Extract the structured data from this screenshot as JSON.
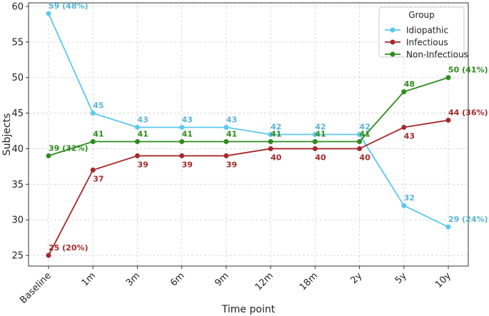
{
  "chart_data": {
    "type": "line",
    "title": "",
    "xlabel": "Time point",
    "ylabel": "Subjects",
    "categories": [
      "Baseline",
      "1m",
      "3m",
      "6m",
      "9m",
      "12m",
      "18m",
      "2y",
      "5y",
      "10y"
    ],
    "ylim": [
      23.5,
      60.5
    ],
    "yticks": [
      25,
      30,
      35,
      40,
      45,
      50,
      55,
      60
    ],
    "grid": true,
    "legend": {
      "title": "Group",
      "placement": "top-right"
    },
    "series": [
      {
        "name": "Idiopathic",
        "color": "#5bc8ef",
        "label_color": "#5ab4d6",
        "values": [
          59,
          45,
          43,
          43,
          43,
          42,
          42,
          42,
          32,
          29
        ],
        "labels": [
          "59 (48%)",
          "45",
          "43",
          "43",
          "43",
          "42",
          "42",
          "42",
          "32",
          "29 (24%)"
        ],
        "label_pos": [
          "above",
          "above",
          "above",
          "above",
          "above",
          "above",
          "above",
          "above",
          "above",
          "above"
        ]
      },
      {
        "name": "Infectious",
        "color": "#a52a2a",
        "label_color": "#a52a2a",
        "values": [
          25,
          37,
          39,
          39,
          39,
          40,
          40,
          40,
          43,
          44
        ],
        "labels": [
          "25 (20%)",
          "37",
          "39",
          "39",
          "39",
          "40",
          "40",
          "40",
          "43",
          "44 (36%)"
        ],
        "label_pos": [
          "above",
          "below",
          "below",
          "below",
          "below",
          "below",
          "below",
          "below",
          "below",
          "above"
        ]
      },
      {
        "name": "Non-Infectious",
        "color": "#2e8b1e",
        "label_color": "#2e8b1e",
        "values": [
          39,
          41,
          41,
          41,
          41,
          41,
          41,
          41,
          48,
          50
        ],
        "labels": [
          "39 (32%)",
          "41",
          "41",
          "41",
          "41",
          "41",
          "41",
          "41",
          "48",
          "50 (41%)"
        ],
        "label_pos": [
          "above",
          "above",
          "above",
          "above",
          "above",
          "above",
          "above",
          "above",
          "above",
          "above"
        ]
      }
    ]
  }
}
